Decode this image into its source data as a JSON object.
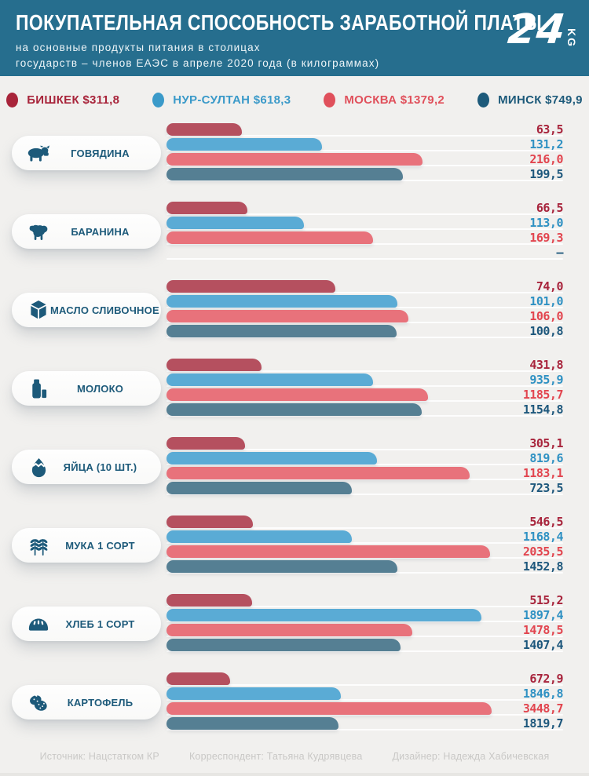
{
  "header": {
    "title": "ПОКУПАТЕЛЬНАЯ СПОСОБНОСТЬ ЗАРАБОТНОЙ ПЛАТЫ",
    "subtitle_line1": "на основные продукты питания в столицах",
    "subtitle_line2": "государств – членов ЕАЭС в апреле 2020 года (в килограммах)",
    "logo_number": "24",
    "logo_suffix": "KG"
  },
  "colors": {
    "header_bg": "#266e8e",
    "page_bg": "#f1f0ee",
    "accent_dark_teal": "#1d5a7a"
  },
  "legend": [
    {
      "label": "БИШКЕК $311,8",
      "color": "#a8243a"
    },
    {
      "label": "НУР-СУЛТАН $618,3",
      "color": "#3b9ac9"
    },
    {
      "label": "МОСКВА $1379,2",
      "color": "#e0505b"
    },
    {
      "label": "МИНСК $749,9",
      "color": "#1d5a7a"
    }
  ],
  "chart_data": {
    "type": "bar",
    "title": "Покупательная способность заработной платы",
    "unit": "килограммы",
    "orientation": "horizontal",
    "series": [
      {
        "name": "Бишкек",
        "salary_usd": "311,8",
        "bar_color": "#b5505f",
        "value_color": "#a8243c"
      },
      {
        "name": "Нур-Султан",
        "salary_usd": "618,3",
        "bar_color": "#5aabd5",
        "value_color": "#2f91c3"
      },
      {
        "name": "Москва",
        "salary_usd": "1379,2",
        "bar_color": "#e8727b",
        "value_color": "#e2454f"
      },
      {
        "name": "Минск",
        "salary_usd": "749,9",
        "bar_color": "#557f93",
        "value_color": "#1d577c"
      }
    ],
    "categories": [
      {
        "label": "ГОВЯДИНА",
        "icon": "beef-icon",
        "values": [
          63.5,
          131.2,
          216.0,
          199.5
        ],
        "labels": [
          "63,5",
          "131,2",
          "216,0",
          "199,5"
        ],
        "scale": 0.645
      },
      {
        "label": "БАРАНИНА",
        "icon": "sheep-icon",
        "values": [
          66.5,
          113.0,
          169.3,
          null
        ],
        "labels": [
          "66,5",
          "113,0",
          "169,3",
          "–"
        ],
        "scale": 0.52
      },
      {
        "label": "МАСЛО СЛИВОЧНОЕ",
        "icon": "butter-icon",
        "values": [
          74.0,
          101.0,
          106.0,
          100.8
        ],
        "labels": [
          "74,0",
          "101,0",
          "106,0",
          "100,8"
        ],
        "scale": 0.61
      },
      {
        "label": "МОЛОКО",
        "icon": "milk-icon",
        "values": [
          431.8,
          935.9,
          1185.7,
          1154.8
        ],
        "labels": [
          "431,8",
          "935,9",
          "1185,7",
          "1154,8"
        ],
        "scale": 0.66
      },
      {
        "label": "ЯЙЦА (10 ШТ.)",
        "icon": "egg-icon",
        "values": [
          305.1,
          819.6,
          1183.1,
          723.5
        ],
        "labels": [
          "305,1",
          "819,6",
          "1183,1",
          "723,5"
        ],
        "scale": 0.765
      },
      {
        "label": "МУКА 1 СОРТ",
        "icon": "wheat-icon",
        "values": [
          546.5,
          1168.4,
          2035.5,
          1452.8
        ],
        "labels": [
          "546,5",
          "1168,4",
          "2035,5",
          "1452,8"
        ],
        "scale": 0.815
      },
      {
        "label": "ХЛЕБ 1 СОРТ",
        "icon": "bread-icon",
        "values": [
          515.2,
          1897.4,
          1478.5,
          1407.4
        ],
        "labels": [
          "515,2",
          "1897,4",
          "1478,5",
          "1407,4"
        ],
        "scale": 0.795
      },
      {
        "label": "КАРТОФЕЛЬ",
        "icon": "potato-icon",
        "values": [
          672.9,
          1846.8,
          3448.7,
          1819.7
        ],
        "labels": [
          "672,9",
          "1846,8",
          "3448,7",
          "1819,7"
        ],
        "scale": 0.82
      }
    ]
  },
  "footer": {
    "source": "Источник: Нацстатком КР",
    "correspondent": "Корреспондент: Татьяна Кудрявцева",
    "designer": "Дизайнер: Надежда Хабичевская"
  }
}
